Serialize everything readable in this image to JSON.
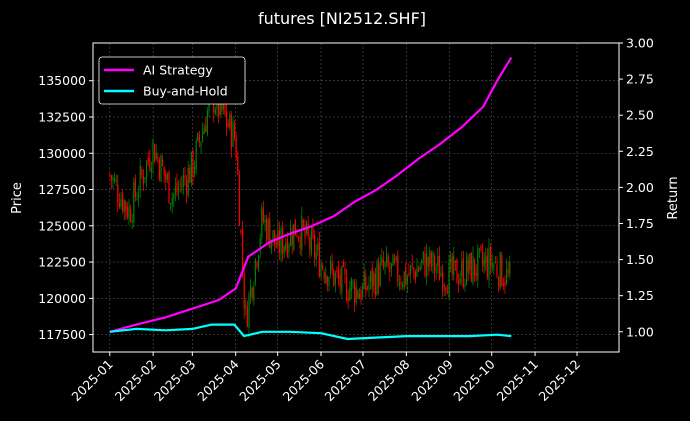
{
  "chart_data": {
    "type": "line",
    "title": "futures [NI2512.SHF]",
    "ylabel_left": "Price",
    "ylabel_right": "Return",
    "ylim_left": [
      116300,
      137600
    ],
    "ylim_right": [
      0.86,
      3.0
    ],
    "x_tick_labels": [
      "2025-01",
      "2025-02",
      "2025-03",
      "2025-04",
      "2025-05",
      "2025-06",
      "2025-07",
      "2025-08",
      "2025-09",
      "2025-10",
      "2025-11",
      "2025-12"
    ],
    "y_left_ticks": [
      117500,
      120000,
      122500,
      125000,
      127500,
      130000,
      132500,
      135000
    ],
    "y_left_tick_labels": [
      "117500",
      "120000",
      "122500",
      "125000",
      "127500",
      "130000",
      "132500",
      "135000"
    ],
    "y_right_ticks": [
      1.0,
      1.25,
      1.5,
      1.75,
      2.0,
      2.25,
      2.5,
      2.75,
      3.0
    ],
    "y_right_tick_labels": [
      "1.00",
      "1.25",
      "1.50",
      "1.75",
      "2.00",
      "2.25",
      "2.50",
      "2.75",
      "3.00"
    ],
    "grid": true,
    "legend_position": "top-left",
    "series": [
      {
        "name": "AI Strategy",
        "color": "#ff00ff",
        "axis": "right",
        "x": [
          "2025-01-01",
          "2025-01-20",
          "2025-02-10",
          "2025-03-01",
          "2025-03-20",
          "2025-04-01",
          "2025-04-10",
          "2025-04-25",
          "2025-05-10",
          "2025-05-25",
          "2025-06-10",
          "2025-06-25",
          "2025-07-10",
          "2025-07-25",
          "2025-08-10",
          "2025-08-25",
          "2025-09-10",
          "2025-09-25",
          "2025-10-05",
          "2025-10-15"
        ],
        "values": [
          1.0,
          1.05,
          1.1,
          1.16,
          1.22,
          1.3,
          1.52,
          1.62,
          1.68,
          1.73,
          1.8,
          1.9,
          1.98,
          2.08,
          2.2,
          2.3,
          2.42,
          2.56,
          2.74,
          2.9
        ]
      },
      {
        "name": "Buy-and-Hold",
        "color": "#00ffff",
        "axis": "right",
        "x": [
          "2025-01-01",
          "2025-01-20",
          "2025-02-10",
          "2025-03-01",
          "2025-03-15",
          "2025-03-31",
          "2025-04-07",
          "2025-04-20",
          "2025-05-10",
          "2025-06-01",
          "2025-06-20",
          "2025-07-10",
          "2025-08-01",
          "2025-08-25",
          "2025-09-15",
          "2025-10-05",
          "2025-10-15"
        ],
        "values": [
          1.0,
          1.02,
          1.01,
          1.02,
          1.05,
          1.05,
          0.97,
          1.0,
          1.0,
          0.99,
          0.95,
          0.96,
          0.97,
          0.97,
          0.97,
          0.98,
          0.97
        ]
      }
    ],
    "candles": {
      "axis": "left",
      "up_color": "#008000",
      "down_color": "#ff0000",
      "x": [
        "2025-01-01",
        "2025-01-15",
        "2025-02-01",
        "2025-02-15",
        "2025-03-01",
        "2025-03-15",
        "2025-04-01",
        "2025-04-08",
        "2025-04-20",
        "2025-05-01",
        "2025-05-15",
        "2025-06-01",
        "2025-06-15",
        "2025-07-01",
        "2025-07-15",
        "2025-08-01",
        "2025-08-15",
        "2025-09-01",
        "2025-09-15",
        "2025-10-01",
        "2025-10-15"
      ],
      "close": [
        128500,
        126000,
        130500,
        127000,
        129000,
        134000,
        131000,
        118500,
        125500,
        123500,
        125000,
        122500,
        121000,
        120500,
        122000,
        121500,
        122500,
        121500,
        122000,
        122500,
        121200
      ]
    }
  }
}
